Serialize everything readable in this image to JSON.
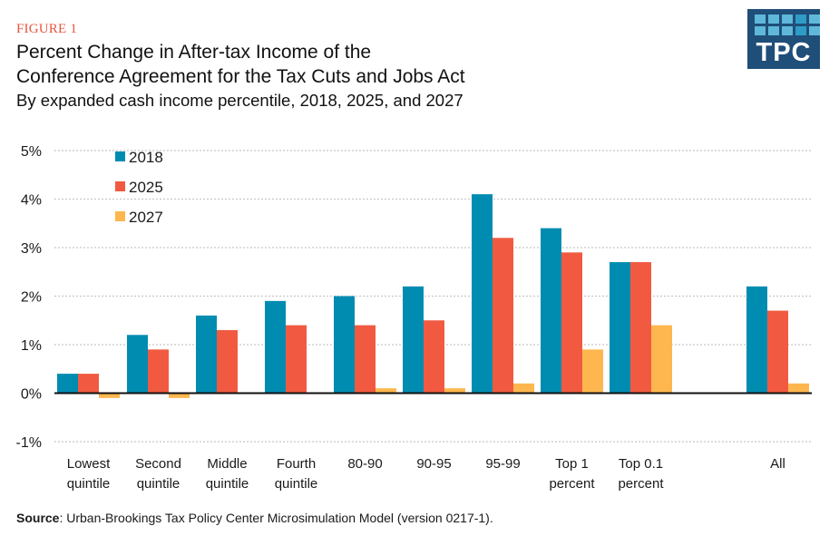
{
  "header": {
    "figure_label": "FIGURE 1",
    "title_line1": "Percent Change in After-tax Income of the",
    "title_line2": "Conference Agreement for the Tax Cuts and Jobs Act",
    "subtitle": "By expanded cash income percentile, 2018, 2025, and 2027"
  },
  "logo": {
    "text": "TPC",
    "brand_color": "#1f4e79"
  },
  "source": {
    "label": "Source",
    "text": ": Urban-Brookings Tax Policy Center Microsimulation Model (version 0217-1)."
  },
  "chart_data": {
    "type": "bar",
    "title": "Percent Change in After-tax Income of the Conference Agreement for the Tax Cuts and Jobs Act",
    "subtitle": "By expanded cash income percentile, 2018, 2025, and 2027",
    "xlabel": "",
    "ylabel": "",
    "ylim": [
      -1,
      5
    ],
    "yticks": [
      5,
      4,
      3,
      2,
      1,
      0,
      -1
    ],
    "ytick_labels": [
      "5%",
      "4%",
      "3%",
      "2%",
      "1%",
      "0%",
      "-1%"
    ],
    "grid": true,
    "legend_position": "top-left",
    "categories": [
      [
        "Lowest",
        "quintile"
      ],
      [
        "Second",
        "quintile"
      ],
      [
        "Middle",
        "quintile"
      ],
      [
        "Fourth",
        "quintile"
      ],
      [
        "80-90"
      ],
      [
        "90-95"
      ],
      [
        "95-99"
      ],
      [
        "Top 1",
        "percent"
      ],
      [
        "Top 0.1",
        "percent"
      ],
      [
        "All"
      ]
    ],
    "series": [
      {
        "name": "2018",
        "color": "#008cb0",
        "values": [
          0.4,
          1.2,
          1.6,
          1.9,
          2.0,
          2.2,
          4.1,
          3.4,
          2.7,
          2.2
        ]
      },
      {
        "name": "2025",
        "color": "#f15a40",
        "values": [
          0.4,
          0.9,
          1.3,
          1.4,
          1.4,
          1.5,
          3.2,
          2.9,
          2.7,
          1.7
        ]
      },
      {
        "name": "2027",
        "color": "#fdb74e",
        "values": [
          -0.1,
          -0.1,
          0.0,
          0.0,
          0.1,
          0.1,
          0.2,
          0.9,
          1.4,
          0.2
        ]
      }
    ]
  }
}
